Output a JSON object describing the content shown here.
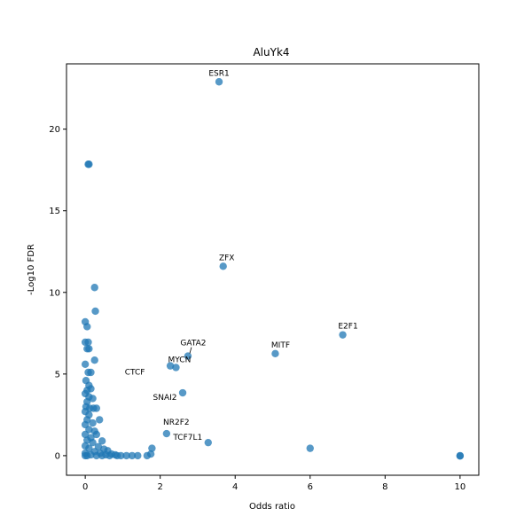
{
  "chart_data": {
    "type": "scatter",
    "title": "AluYk4",
    "xlabel": "Odds ratio",
    "ylabel": "-Log10 FDR",
    "xlim": [
      -0.5,
      10.5
    ],
    "ylim": [
      -1.2,
      24.0
    ],
    "xticks": [
      0,
      2,
      4,
      6,
      8,
      10
    ],
    "yticks": [
      0,
      5,
      10,
      15,
      20
    ],
    "grid": false,
    "point_color": "#1f77b4",
    "point_alpha": 0.75,
    "points": [
      [
        3.57,
        22.9
      ],
      [
        0.08,
        17.85
      ],
      [
        0.1,
        17.85
      ],
      [
        3.68,
        11.6
      ],
      [
        0.25,
        10.3
      ],
      [
        0.27,
        8.85
      ],
      [
        0.0,
        8.2
      ],
      [
        0.05,
        7.9
      ],
      [
        6.87,
        7.4
      ],
      [
        0.0,
        6.95
      ],
      [
        0.08,
        6.95
      ],
      [
        0.05,
        6.55
      ],
      [
        0.1,
        6.55
      ],
      [
        5.07,
        6.25
      ],
      [
        2.74,
        6.1
      ],
      [
        2.27,
        5.5
      ],
      [
        2.42,
        5.4
      ],
      [
        0.25,
        5.85
      ],
      [
        0.0,
        5.6
      ],
      [
        0.08,
        5.1
      ],
      [
        0.15,
        5.1
      ],
      [
        0.02,
        4.6
      ],
      [
        0.1,
        4.3
      ],
      [
        0.15,
        4.1
      ],
      [
        0.05,
        4.0
      ],
      [
        0.0,
        3.8
      ],
      [
        0.1,
        3.6
      ],
      [
        0.05,
        3.3
      ],
      [
        0.2,
        3.5
      ],
      [
        0.02,
        3.0
      ],
      [
        0.12,
        2.9
      ],
      [
        0.0,
        2.7
      ],
      [
        0.1,
        2.5
      ],
      [
        0.22,
        2.9
      ],
      [
        0.3,
        2.9
      ],
      [
        0.05,
        2.2
      ],
      [
        0.2,
        2.0
      ],
      [
        0.38,
        2.2
      ],
      [
        0.0,
        1.9
      ],
      [
        0.1,
        1.6
      ],
      [
        0.25,
        1.5
      ],
      [
        0.0,
        1.3
      ],
      [
        0.15,
        1.1
      ],
      [
        0.3,
        1.3
      ],
      [
        0.05,
        0.95
      ],
      [
        0.45,
        0.9
      ],
      [
        0.2,
        0.8
      ],
      [
        0.0,
        0.6
      ],
      [
        0.35,
        0.55
      ],
      [
        0.1,
        0.45
      ],
      [
        0.5,
        0.4
      ],
      [
        0.6,
        0.3
      ],
      [
        0.25,
        0.25
      ],
      [
        0.0,
        0.15
      ],
      [
        0.4,
        0.15
      ],
      [
        0.7,
        0.1
      ],
      [
        0.8,
        0.05
      ],
      [
        0.15,
        0.05
      ],
      [
        0.55,
        0.05
      ],
      [
        0.95,
        0.0
      ],
      [
        1.1,
        0.0
      ],
      [
        1.25,
        0.0
      ],
      [
        1.4,
        0.0
      ],
      [
        1.65,
        0.0
      ],
      [
        1.75,
        0.1
      ],
      [
        1.78,
        0.45
      ],
      [
        0.0,
        0.0
      ],
      [
        0.05,
        0.0
      ],
      [
        0.3,
        0.0
      ],
      [
        0.45,
        0.0
      ],
      [
        0.65,
        0.0
      ],
      [
        0.85,
        0.0
      ],
      [
        2.6,
        3.85
      ],
      [
        2.17,
        1.35
      ],
      [
        3.28,
        0.8
      ],
      [
        6.0,
        0.45
      ],
      [
        10.0,
        0.0
      ],
      [
        10.0,
        -0.02
      ]
    ],
    "annotations": [
      {
        "text": "ESR1",
        "x": 3.57,
        "y": 22.9
      },
      {
        "text": "ZFX",
        "x": 3.68,
        "y": 11.6
      },
      {
        "text": "E2F1",
        "x": 6.87,
        "y": 7.4
      },
      {
        "text": "MITF",
        "x": 5.07,
        "y": 6.25
      },
      {
        "text": "GATA2",
        "x": 2.74,
        "y": 6.1
      },
      {
        "text": "MYCN",
        "x": 2.42,
        "y": 5.4
      },
      {
        "text": "CTCF",
        "x": 2.27,
        "y": 5.5
      },
      {
        "text": "SNAI2",
        "x": 2.6,
        "y": 3.85
      },
      {
        "text": "NR2F2",
        "x": 2.17,
        "y": 1.35
      },
      {
        "text": "TCF7L1",
        "x": 3.28,
        "y": 0.8
      }
    ]
  }
}
